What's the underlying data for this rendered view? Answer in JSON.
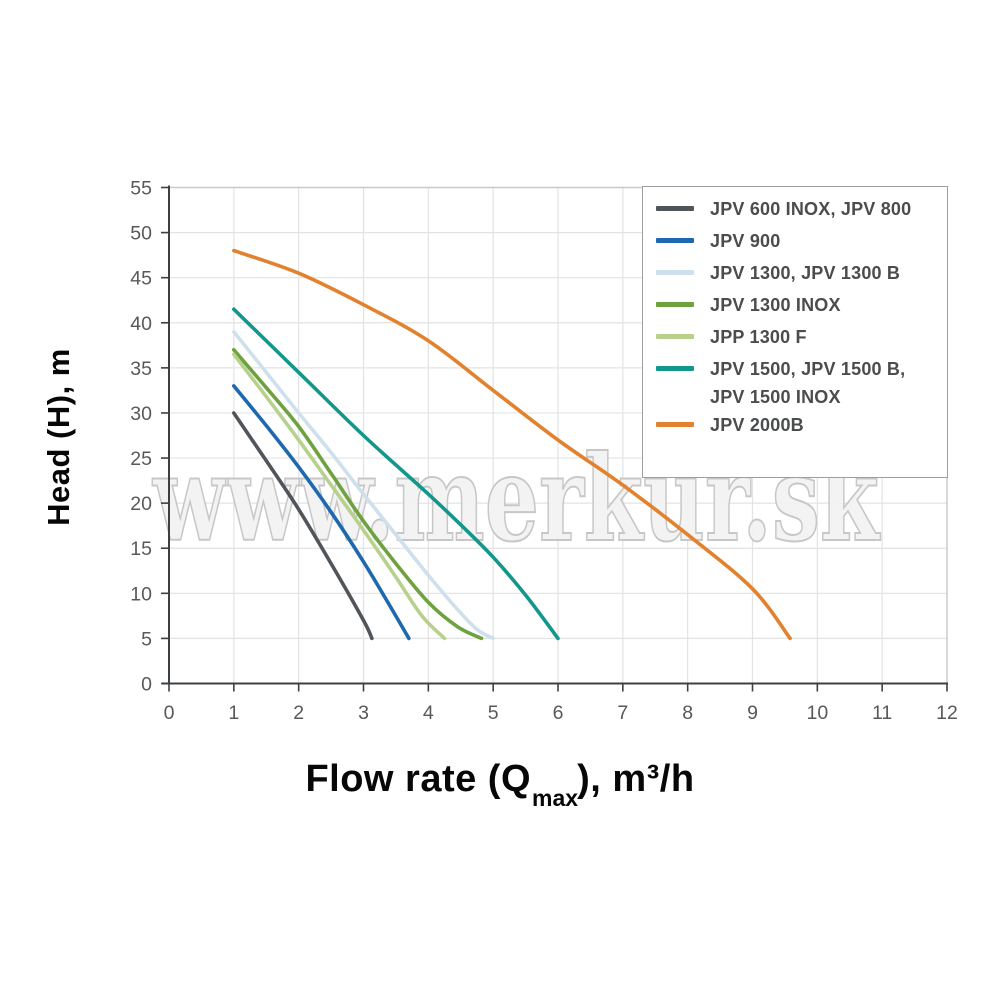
{
  "watermark": "www.merkur.sk",
  "chart_data": {
    "type": "line",
    "title": "",
    "xlabel": {
      "prefix": "Flow rate (Q",
      "sub": "max",
      "suffix": "), m³/h"
    },
    "ylabel": "Head (H), m",
    "xlim": [
      0,
      12
    ],
    "ylim": [
      0,
      55
    ],
    "xticks": [
      0,
      1,
      2,
      3,
      4,
      5,
      6,
      7,
      8,
      9,
      10,
      11,
      12
    ],
    "yticks": [
      0,
      5,
      10,
      15,
      20,
      25,
      30,
      35,
      40,
      45,
      50,
      55
    ],
    "grid": true,
    "legend_position": "top-right",
    "series": [
      {
        "name": "JPV 600 INOX, JPV 800",
        "legend_lines": [
          "JPV 600 INOX, JPV 800"
        ],
        "color": "#50555a",
        "points": [
          [
            1,
            30
          ],
          [
            1.5,
            24.7
          ],
          [
            2,
            19.3
          ],
          [
            2.5,
            13.3
          ],
          [
            3,
            7
          ],
          [
            3.13,
            5
          ]
        ]
      },
      {
        "name": "JPV 900",
        "legend_lines": [
          "JPV 900"
        ],
        "color": "#1d69b0",
        "points": [
          [
            1,
            33
          ],
          [
            1.5,
            28.6
          ],
          [
            2,
            24
          ],
          [
            2.5,
            19
          ],
          [
            3,
            13.5
          ],
          [
            3.4,
            8.7
          ],
          [
            3.7,
            5
          ]
        ]
      },
      {
        "name": "JPV 1300, JPV 1300 B",
        "legend_lines": [
          "JPV 1300, JPV 1300 B"
        ],
        "color": "#cfe0ed",
        "points": [
          [
            1,
            39
          ],
          [
            1.5,
            34.5
          ],
          [
            2,
            30
          ],
          [
            2.5,
            25.6
          ],
          [
            3,
            21
          ],
          [
            3.5,
            16.5
          ],
          [
            4,
            12
          ],
          [
            4.4,
            8.6
          ],
          [
            4.75,
            6
          ],
          [
            5,
            5
          ]
        ]
      },
      {
        "name": "JPV 1300 INOX",
        "legend_lines": [
          "JPV 1300 INOX"
        ],
        "color": "#6da23f",
        "points": [
          [
            1,
            37
          ],
          [
            1.5,
            32.8
          ],
          [
            2,
            28.5
          ],
          [
            2.5,
            23.3
          ],
          [
            3,
            18
          ],
          [
            3.5,
            13.3
          ],
          [
            4,
            9
          ],
          [
            4.45,
            6.3
          ],
          [
            4.82,
            5
          ]
        ]
      },
      {
        "name": "JPP 1300 F",
        "legend_lines": [
          "JPP 1300 F"
        ],
        "color": "#b7d18c",
        "points": [
          [
            1,
            36.5
          ],
          [
            1.5,
            31.8
          ],
          [
            2,
            27
          ],
          [
            2.5,
            22
          ],
          [
            3,
            17
          ],
          [
            3.5,
            11.8
          ],
          [
            3.9,
            7.5
          ],
          [
            4.25,
            5
          ]
        ]
      },
      {
        "name": "JPV 1500, JPV 1500 B, JPV 1500 INOX",
        "legend_lines": [
          "JPV 1500, JPV 1500 B,",
          "JPV 1500 INOX"
        ],
        "color": "#13968c",
        "points": [
          [
            1,
            41.5
          ],
          [
            2,
            34.5
          ],
          [
            3,
            27.5
          ],
          [
            4,
            21
          ],
          [
            4.5,
            17.6
          ],
          [
            5,
            14
          ],
          [
            5.5,
            9.8
          ],
          [
            6,
            5
          ]
        ]
      },
      {
        "name": "JPV 2000B",
        "legend_lines": [
          "JPV 2000B"
        ],
        "color": "#e2822e",
        "points": [
          [
            1,
            48
          ],
          [
            2,
            45.5
          ],
          [
            3,
            42
          ],
          [
            4,
            38
          ],
          [
            5,
            32.5
          ],
          [
            6,
            27
          ],
          [
            7,
            22
          ],
          [
            8,
            16.5
          ],
          [
            9,
            10.5
          ],
          [
            9.58,
            5
          ]
        ]
      }
    ]
  },
  "colors": {
    "grid": "#e3e3e3",
    "frame": "#c9c9c9",
    "axis": "#3c4043",
    "tick_label": "#57595b",
    "legend_border": "#9e9e9e",
    "legend_text": "#4a4c4e",
    "watermark_fill": "#f2f2f2",
    "watermark_stroke": "#c7c7c7",
    "title_text": "#070707"
  }
}
